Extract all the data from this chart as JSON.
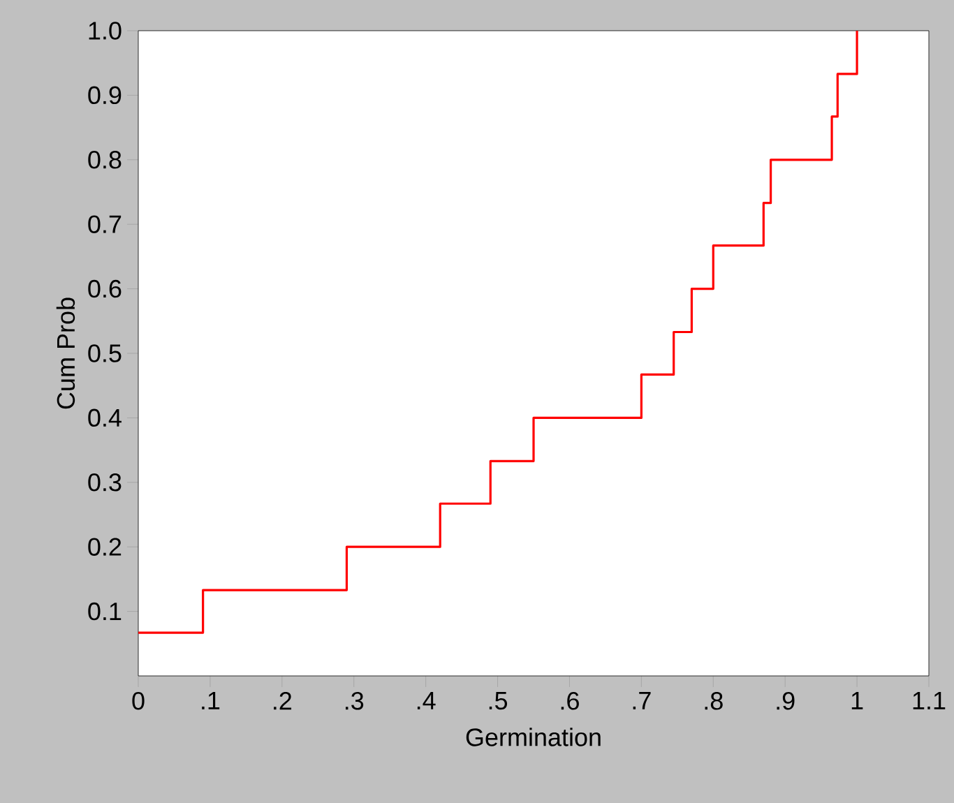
{
  "chart_data": {
    "type": "step",
    "xlabel": "Germination",
    "ylabel": "Cum Prob",
    "x": [
      0,
      0.09,
      0.29,
      0.42,
      0.49,
      0.55,
      0.7,
      0.745,
      0.77,
      0.8,
      0.87,
      0.88,
      0.965,
      0.973,
      1.0
    ],
    "values": [
      0.067,
      0.133,
      0.2,
      0.267,
      0.333,
      0.4,
      0.467,
      0.533,
      0.6,
      0.667,
      0.733,
      0.8,
      0.867,
      0.933,
      1.0
    ],
    "color": "#ff0000",
    "line_style": "solid",
    "xlim": [
      0,
      1.1
    ],
    "ylim": [
      0,
      1.0
    ],
    "xticks": [
      0,
      {
        "value": 0.1,
        "label": ".1"
      },
      {
        "value": 0.2,
        "label": ".2"
      },
      {
        "value": 0.3,
        "label": ".3"
      },
      {
        "value": 0.4,
        "label": ".4"
      },
      {
        "value": 0.5,
        "label": ".5"
      },
      {
        "value": 0.6,
        "label": ".6"
      },
      {
        "value": 0.7,
        "label": ".7"
      },
      {
        "value": 0.8,
        "label": ".8"
      },
      {
        "value": 0.9,
        "label": ".9"
      },
      1,
      1.1
    ],
    "yticks": [
      0.1,
      0.2,
      0.3,
      0.4,
      0.5,
      0.6,
      0.7,
      0.8,
      0.9,
      {
        "value": 1.0,
        "label": "1.0"
      }
    ],
    "grid": false
  }
}
